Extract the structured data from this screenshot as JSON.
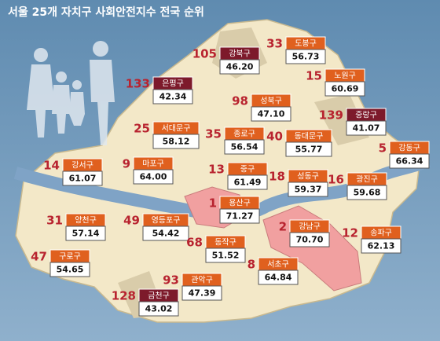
{
  "title": "서울 25개 자치구 사회안전지수 전국 순위",
  "districts": [
    {
      "name": "강북구",
      "rank": 105,
      "score": "46.20"
    },
    {
      "name": "도봉구",
      "rank": 33,
      "score": "56.73"
    },
    {
      "name": "노원구",
      "rank": 15,
      "score": "60.69"
    },
    {
      "name": "은평구",
      "rank": 133,
      "score": "42.34"
    },
    {
      "name": "성북구",
      "rank": 98,
      "score": "47.10"
    },
    {
      "name": "중랑구",
      "rank": 139,
      "score": "41.07"
    },
    {
      "name": "서대문구",
      "rank": 25,
      "score": "58.12"
    },
    {
      "name": "종로구",
      "rank": 35,
      "score": "56.54"
    },
    {
      "name": "동대문구",
      "rank": 40,
      "score": "55.77"
    },
    {
      "name": "강동구",
      "rank": 5,
      "score": "66.34"
    },
    {
      "name": "강서구",
      "rank": 14,
      "score": "61.07"
    },
    {
      "name": "마포구",
      "rank": 9,
      "score": "64.00"
    },
    {
      "name": "중구",
      "rank": 13,
      "score": "61.49"
    },
    {
      "name": "성동구",
      "rank": 18,
      "score": "59.37"
    },
    {
      "name": "광진구",
      "rank": 16,
      "score": "59.68"
    },
    {
      "name": "용산구",
      "rank": 1,
      "score": "71.27"
    },
    {
      "name": "양천구",
      "rank": 31,
      "score": "57.14"
    },
    {
      "name": "영등포구",
      "rank": 49,
      "score": "54.42"
    },
    {
      "name": "강남구",
      "rank": 2,
      "score": "70.70"
    },
    {
      "name": "송파구",
      "rank": 12,
      "score": "62.13"
    },
    {
      "name": "동작구",
      "rank": 68,
      "score": "51.52"
    },
    {
      "name": "구로구",
      "rank": 47,
      "score": "54.65"
    },
    {
      "name": "서초구",
      "rank": 8,
      "score": "64.84"
    },
    {
      "name": "관악구",
      "rank": 93,
      "score": "47.39"
    },
    {
      "name": "금천구",
      "rank": 128,
      "score": "43.02"
    }
  ]
}
